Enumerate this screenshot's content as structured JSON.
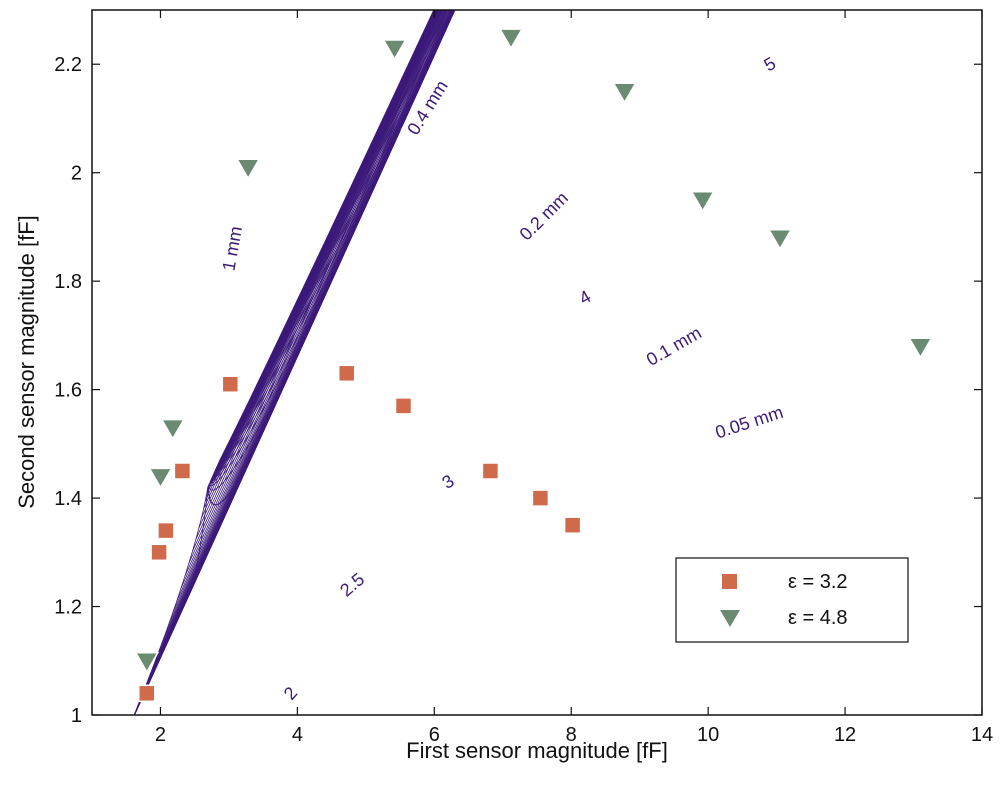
{
  "chart_data": {
    "type": "scatter",
    "title": "",
    "xlabel": "First sensor magnitude [fF]",
    "ylabel": "Second sensor magnitude [fF]",
    "xlim": [
      1,
      14
    ],
    "ylim": [
      1,
      2.3
    ],
    "x_ticks": [
      2,
      4,
      6,
      8,
      10,
      12,
      14
    ],
    "y_ticks": [
      1,
      1.2,
      1.4,
      1.6,
      1.8,
      2,
      2.2
    ],
    "x_tick_labels": [
      "2",
      "4",
      "6",
      "8",
      "10",
      "12",
      "14"
    ],
    "y_tick_labels": [
      "1",
      "1.2",
      "1.4",
      "1.6",
      "1.8",
      "2",
      "2.2"
    ],
    "grid": false,
    "legend_position": "bottom-right",
    "background_grid": {
      "color": "#3c1a7a",
      "permittivity_labels": [
        {
          "text": "2",
          "x": 3.9,
          "y": 1.04,
          "angle": -48
        },
        {
          "text": "2.5",
          "x": 4.8,
          "y": 1.24,
          "angle": -40
        },
        {
          "text": "3",
          "x": 6.2,
          "y": 1.43,
          "angle": -33
        },
        {
          "text": "4",
          "x": 8.2,
          "y": 1.77,
          "angle": -30
        },
        {
          "text": "5",
          "x": 10.9,
          "y": 2.2,
          "angle": -30
        }
      ],
      "distance_labels": [
        {
          "text": "1 mm",
          "x": 3.05,
          "y": 1.86,
          "angle": -80
        },
        {
          "text": "0.4 mm",
          "x": 5.9,
          "y": 2.12,
          "angle": -58
        },
        {
          "text": "0.2 mm",
          "x": 7.6,
          "y": 1.92,
          "angle": -45
        },
        {
          "text": "0.1 mm",
          "x": 9.5,
          "y": 1.68,
          "angle": -30
        },
        {
          "text": "0.05 mm",
          "x": 10.6,
          "y": 1.54,
          "angle": -18
        }
      ]
    },
    "series": [
      {
        "name": "ε = 3.2",
        "marker": "square",
        "color": "#cf6b4a",
        "x": [
          1.8,
          1.98,
          2.08,
          2.32,
          3.02,
          4.72,
          5.55,
          6.82,
          7.55,
          8.02
        ],
        "y": [
          1.04,
          1.3,
          1.34,
          1.45,
          1.61,
          1.63,
          1.57,
          1.45,
          1.4,
          1.35
        ]
      },
      {
        "name": "ε = 4.8",
        "marker": "triangle-down",
        "color": "#6b8a72",
        "x": [
          1.8,
          2.0,
          2.18,
          3.28,
          5.42,
          7.12,
          8.78,
          9.92,
          11.05,
          13.1
        ],
        "y": [
          1.1,
          1.44,
          1.53,
          2.01,
          2.23,
          2.25,
          2.15,
          1.95,
          1.88,
          1.68
        ]
      }
    ]
  }
}
